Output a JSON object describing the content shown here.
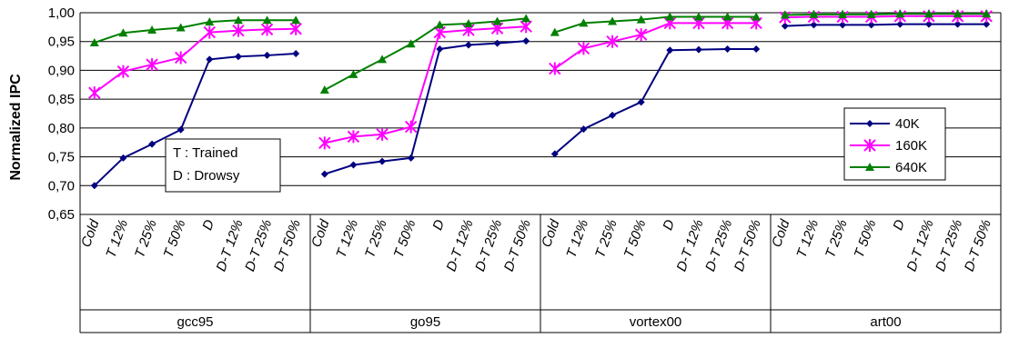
{
  "chart_data": {
    "type": "line",
    "ylabel": "Normalized IPC",
    "ylim": [
      0.65,
      1.0
    ],
    "y_ticks": [
      "0,65",
      "0,70",
      "0,75",
      "0,80",
      "0,85",
      "0,90",
      "0,95",
      "1,00"
    ],
    "grid": "horizontal",
    "legend_placement": "right",
    "annotation": [
      "T : Trained",
      "D : Drowsy"
    ],
    "categories": [
      "Cold",
      "T 12%",
      "T 25%",
      "T 50%",
      "D",
      "D-T 12%",
      "D-T 25%",
      "D-T 50%"
    ],
    "groups": [
      {
        "name": "gcc95",
        "series": [
          {
            "name": "40K",
            "values": [
              0.7,
              0.748,
              0.772,
              0.797,
              0.919,
              0.924,
              0.926,
              0.929
            ]
          },
          {
            "name": "160K",
            "values": [
              0.861,
              0.898,
              0.91,
              0.922,
              0.966,
              0.969,
              0.971,
              0.972
            ]
          },
          {
            "name": "640K",
            "values": [
              0.948,
              0.965,
              0.97,
              0.974,
              0.984,
              0.987,
              0.987,
              0.987
            ]
          }
        ]
      },
      {
        "name": "go95",
        "series": [
          {
            "name": "40K",
            "values": [
              0.72,
              0.736,
              0.742,
              0.748,
              0.937,
              0.944,
              0.947,
              0.951
            ]
          },
          {
            "name": "160K",
            "values": [
              0.774,
              0.785,
              0.789,
              0.802,
              0.966,
              0.97,
              0.973,
              0.976
            ]
          },
          {
            "name": "640K",
            "values": [
              0.866,
              0.893,
              0.919,
              0.946,
              0.979,
              0.981,
              0.985,
              0.99
            ]
          }
        ]
      },
      {
        "name": "vortex00",
        "series": [
          {
            "name": "40K",
            "values": [
              0.755,
              0.798,
              0.822,
              0.845,
              0.935,
              0.936,
              0.937,
              0.937
            ]
          },
          {
            "name": "160K",
            "values": [
              0.903,
              0.938,
              0.95,
              0.962,
              0.982,
              0.982,
              0.982,
              0.982
            ]
          },
          {
            "name": "640K",
            "values": [
              0.966,
              0.982,
              0.985,
              0.988,
              0.993,
              0.993,
              0.993,
              0.993
            ]
          }
        ]
      },
      {
        "name": "art00",
        "series": [
          {
            "name": "40K",
            "values": [
              0.977,
              0.979,
              0.979,
              0.979,
              0.98,
              0.98,
              0.98,
              0.98
            ]
          },
          {
            "name": "160K",
            "values": [
              0.992,
              0.993,
              0.993,
              0.993,
              0.994,
              0.994,
              0.994,
              0.994
            ]
          },
          {
            "name": "640K",
            "values": [
              0.996,
              0.997,
              0.997,
              0.997,
              0.998,
              0.998,
              0.998,
              0.998
            ]
          }
        ]
      }
    ],
    "colors": {
      "40K": "#000080",
      "160K": "#FF00FF",
      "640K": "#008000"
    },
    "markers": {
      "40K": "diamond",
      "160K": "asterisk",
      "640K": "triangle"
    }
  }
}
